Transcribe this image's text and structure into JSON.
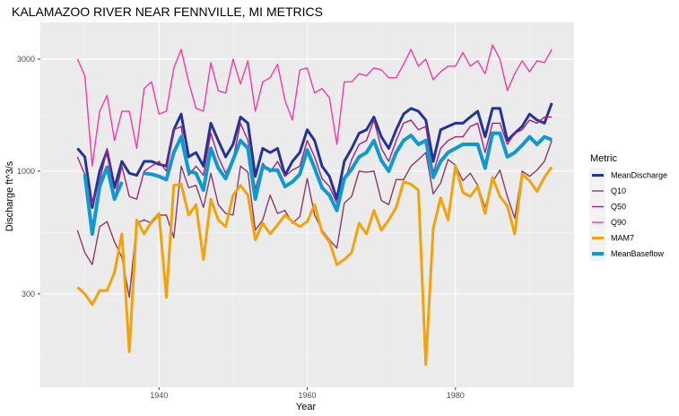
{
  "chart_data": {
    "type": "line",
    "title": "KALAMAZOO RIVER NEAR FENNVILLE, MI  METRICS",
    "xlabel": "Year",
    "ylabel": "Discharge ft^3/s",
    "y_scale": "log",
    "xlim": [
      1924,
      1996
    ],
    "ylim": [
      120,
      4300
    ],
    "x_ticks": [
      1940,
      1960,
      1980
    ],
    "y_ticks": [
      300,
      1000,
      3000
    ],
    "grid": true,
    "legend_title": "Metric",
    "legend_position": "right",
    "x": [
      1929,
      1930,
      1931,
      1932,
      1933,
      1934,
      1935,
      1936,
      1937,
      1938,
      1939,
      1940,
      1941,
      1942,
      1943,
      1944,
      1945,
      1946,
      1947,
      1948,
      1949,
      1950,
      1951,
      1952,
      1953,
      1954,
      1955,
      1956,
      1957,
      1958,
      1959,
      1960,
      1961,
      1962,
      1963,
      1964,
      1965,
      1966,
      1967,
      1968,
      1969,
      1970,
      1971,
      1972,
      1973,
      1974,
      1975,
      1976,
      1977,
      1978,
      1979,
      1980,
      1981,
      1982,
      1983,
      1984,
      1985,
      1986,
      1987,
      1988,
      1989,
      1990,
      1991,
      1992,
      1993
    ],
    "series": [
      {
        "name": "MeanDischarge",
        "color": "#253494",
        "width": 3.0,
        "values": [
          1250,
          1150,
          700,
          1000,
          1220,
          850,
          1100,
          980,
          960,
          1100,
          1100,
          1070,
          1050,
          1500,
          1750,
          1150,
          1200,
          1050,
          1600,
          1350,
          1150,
          1300,
          1700,
          1600,
          950,
          1250,
          1200,
          1250,
          960,
          1100,
          1200,
          1500,
          1350,
          1050,
          950,
          760,
          1100,
          1250,
          1450,
          1500,
          1700,
          1400,
          1250,
          1500,
          1750,
          1850,
          1800,
          1650,
          1100,
          1500,
          1550,
          1600,
          1600,
          1700,
          1800,
          1400,
          1850,
          1850,
          1350,
          1450,
          1550,
          1750,
          1650,
          1600,
          1950
        ]
      },
      {
        "name": "Q10",
        "color": "#8a3a6a",
        "width": 1.4,
        "values": [
          560,
          450,
          400,
          580,
          610,
          500,
          430,
          290,
          600,
          620,
          600,
          650,
          650,
          520,
          1050,
          850,
          870,
          700,
          980,
          720,
          660,
          650,
          1050,
          990,
          560,
          620,
          790,
          660,
          680,
          600,
          640,
          930,
          650,
          560,
          510,
          470,
          730,
          780,
          1000,
          990,
          1000,
          750,
          720,
          920,
          920,
          1050,
          1120,
          1200,
          800,
          890,
          1120,
          1060,
          910,
          980,
          870,
          700,
          900,
          1010,
          780,
          630,
          1000,
          950,
          1010,
          1100,
          1350
        ]
      },
      {
        "name": "Q50",
        "color": "#a7227d",
        "width": 1.4,
        "values": [
          1150,
          970,
          720,
          900,
          1250,
          760,
          1050,
          780,
          760,
          1000,
          1050,
          1100,
          1000,
          1500,
          1550,
          960,
          1050,
          960,
          1450,
          1150,
          980,
          1130,
          1600,
          1350,
          840,
          1080,
          990,
          1100,
          950,
          1010,
          1050,
          1350,
          1150,
          930,
          860,
          730,
          900,
          1120,
          1300,
          1350,
          1650,
          1250,
          1100,
          1350,
          1600,
          1650,
          1500,
          1550,
          980,
          1250,
          1350,
          1400,
          1400,
          1550,
          1600,
          1200,
          1600,
          1600,
          1300,
          1450,
          1500,
          1650,
          1600,
          1700,
          1700
        ]
      },
      {
        "name": "Q90",
        "color": "#f03ca8",
        "width": 1.4,
        "values": [
          3000,
          2550,
          1050,
          1800,
          2100,
          1350,
          1800,
          1800,
          1250,
          2250,
          2400,
          1750,
          1800,
          2750,
          3300,
          2400,
          1850,
          1800,
          2900,
          2200,
          2150,
          3000,
          2350,
          2950,
          1800,
          2400,
          2500,
          2850,
          2000,
          1650,
          2700,
          2750,
          2150,
          2250,
          2050,
          1300,
          2400,
          2400,
          2600,
          2550,
          2750,
          2700,
          2500,
          2500,
          2850,
          3300,
          2800,
          3000,
          2450,
          2650,
          2800,
          2800,
          3200,
          2800,
          2950,
          2600,
          3450,
          3000,
          2200,
          2600,
          2950,
          2650,
          2950,
          2900,
          3300
        ]
      },
      {
        "name": "MAM7",
        "color": "#f0a30a",
        "width": 3.0,
        "values": [
          320,
          300,
          270,
          310,
          310,
          370,
          540,
          170,
          620,
          540,
          610,
          660,
          290,
          870,
          880,
          650,
          720,
          420,
          760,
          620,
          580,
          790,
          870,
          790,
          510,
          600,
          540,
          590,
          650,
          610,
          580,
          610,
          720,
          550,
          500,
          400,
          420,
          450,
          600,
          540,
          680,
          560,
          620,
          700,
          900,
          880,
          830,
          150,
          570,
          770,
          620,
          1050,
          810,
          780,
          860,
          660,
          940,
          780,
          710,
          540,
          970,
          910,
          820,
          940,
          1040
        ]
      },
      {
        "name": "MeanBaseflow",
        "color": "#0f99cc",
        "width": 4.0,
        "values": [
          null,
          970,
          540,
          860,
          1040,
          760,
          900,
          null,
          null,
          980,
          970,
          950,
          920,
          1200,
          1400,
          1000,
          980,
          830,
          1250,
          1030,
          930,
          1120,
          1350,
          1250,
          760,
          1050,
          1010,
          1010,
          860,
          900,
          970,
          1230,
          1030,
          850,
          790,
          680,
          930,
          1020,
          1150,
          1200,
          1350,
          1110,
          1000,
          1200,
          1350,
          1420,
          1300,
          1350,
          940,
          1100,
          1200,
          1250,
          1300,
          1300,
          1300,
          1030,
          1450,
          1450,
          1150,
          1200,
          1290,
          1400,
          1300,
          1400,
          1360
        ]
      }
    ]
  }
}
